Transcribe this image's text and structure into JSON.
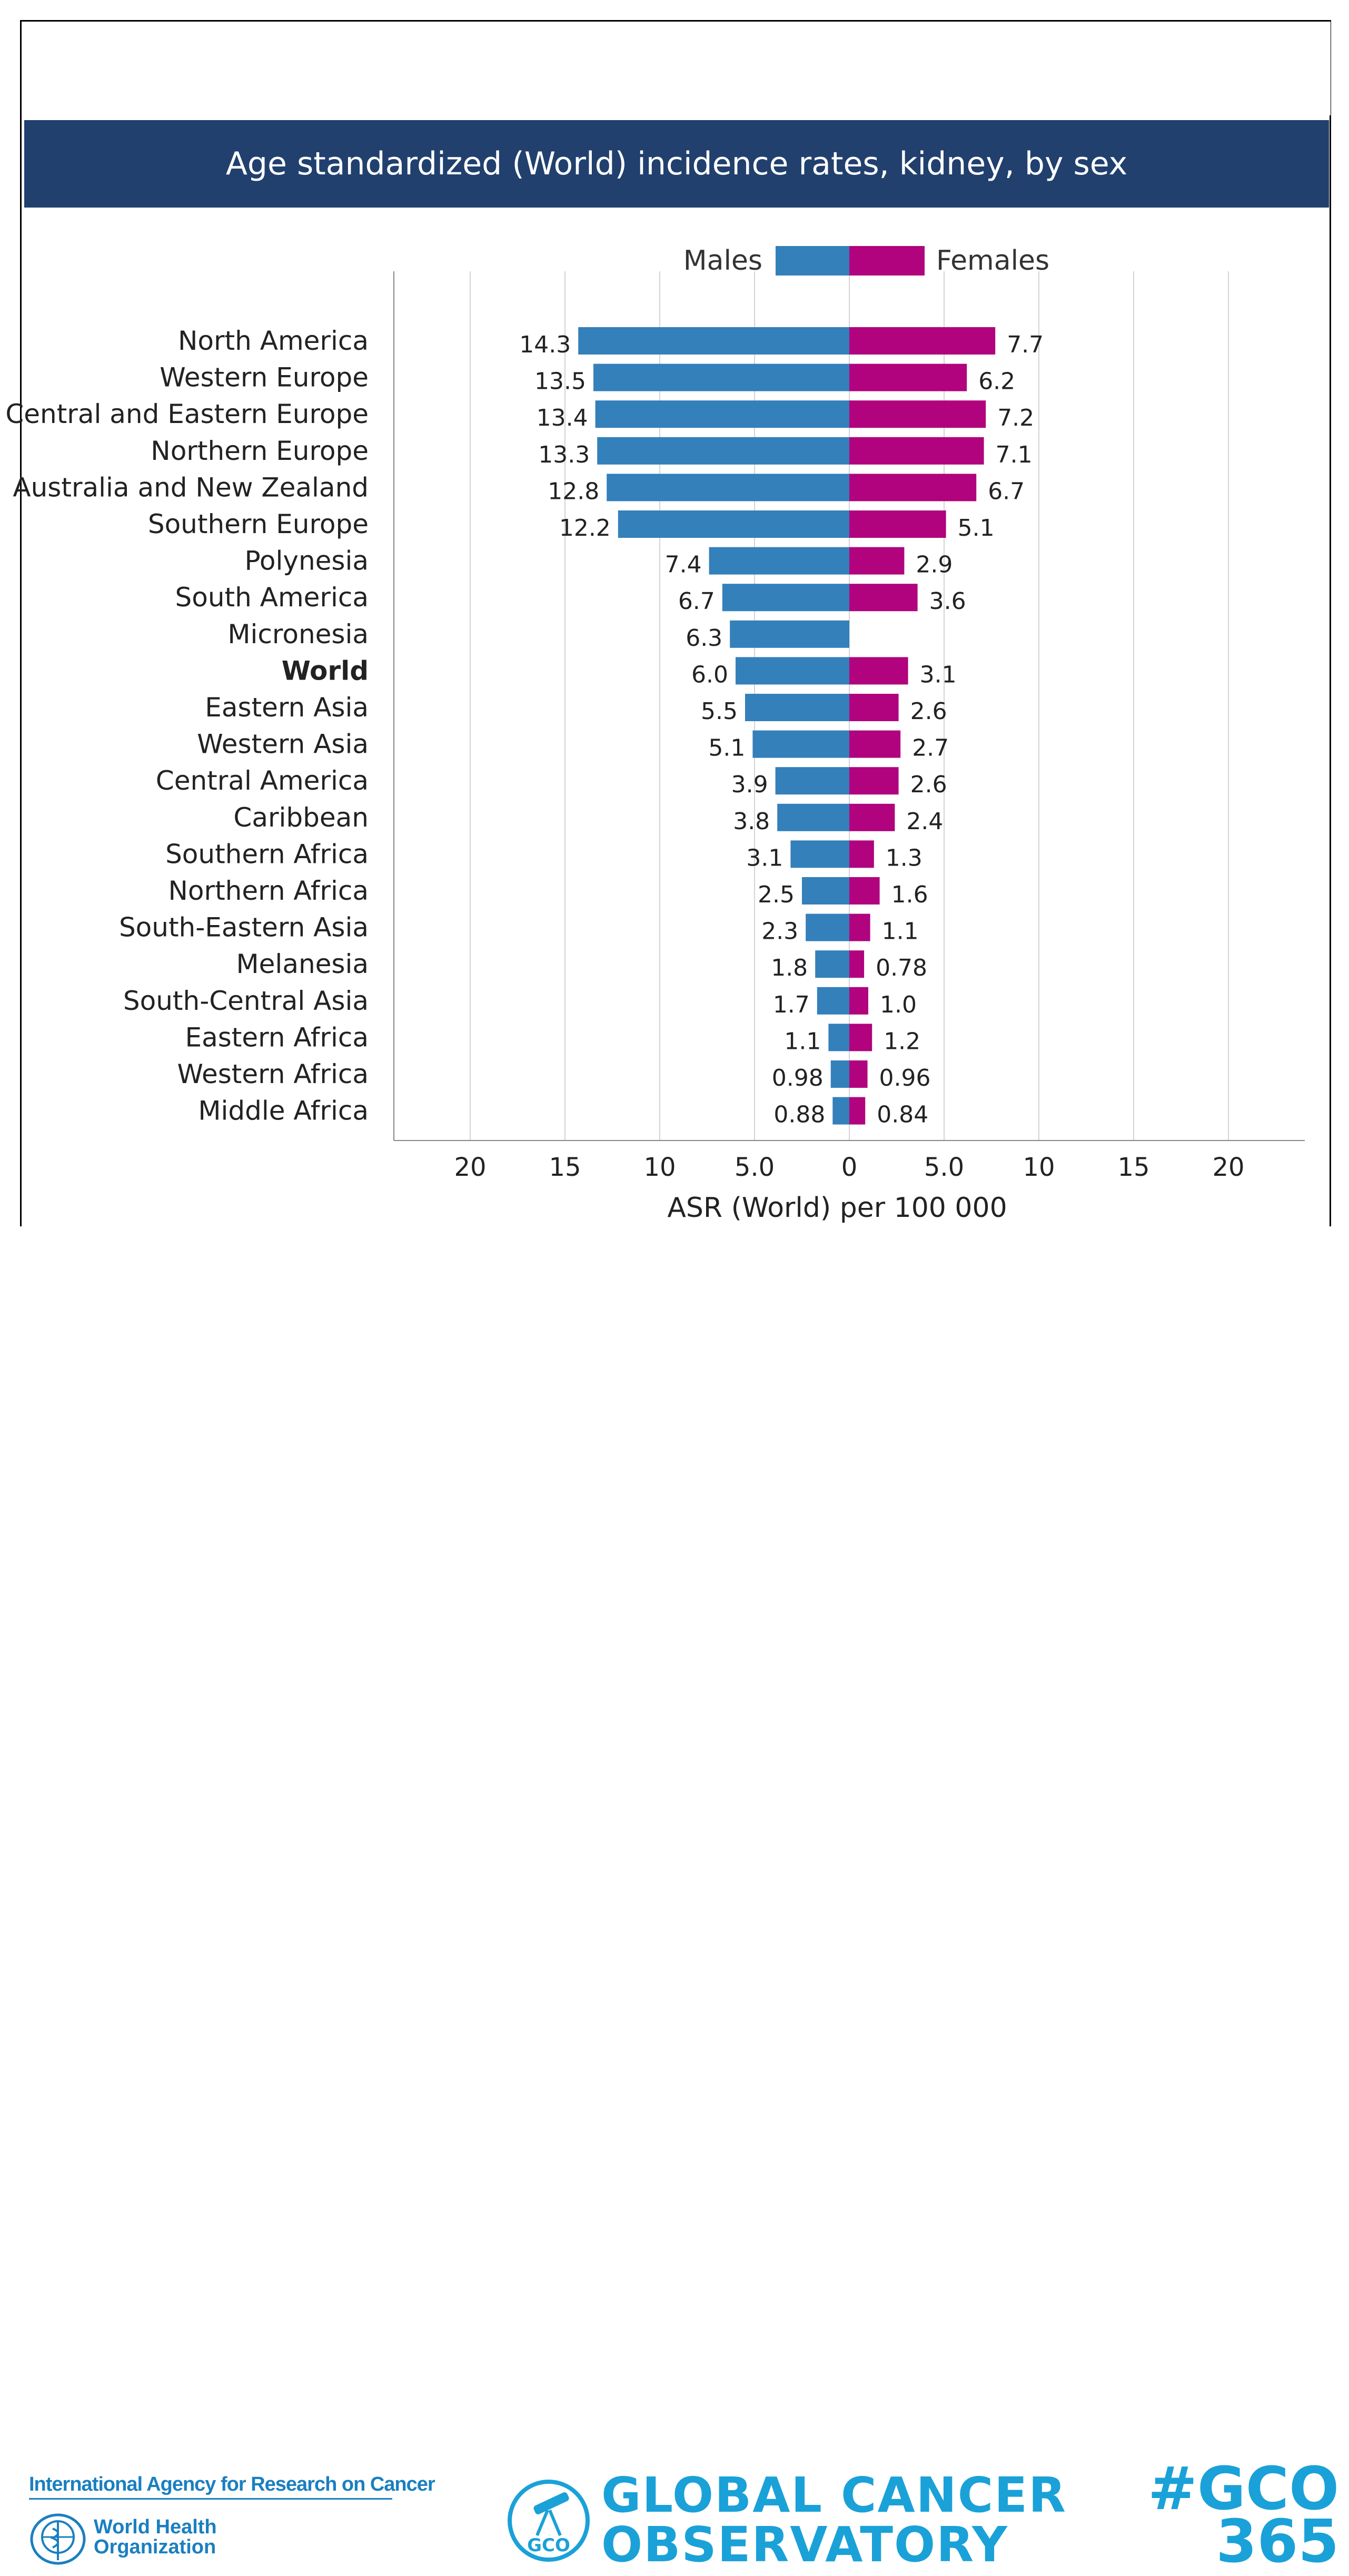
{
  "title": "Age standardized (World) incidence rates, kidney, by sex",
  "legend": {
    "males": "Males",
    "females": "Females"
  },
  "colors": {
    "males": "#3380bb",
    "females": "#b0037d",
    "title_bg": "#21406e",
    "brand": "#1aa1d8"
  },
  "footer": {
    "iarc": "International Agency for Research on Cancer",
    "who_line1": "World Health",
    "who_line2": "Organization",
    "gco_line1": "GLOBAL CANCER",
    "gco_line2": "OBSERVATORY",
    "gco_badge": "GCO",
    "hashtag_line1": "#GCO",
    "hashtag_line2": "365"
  },
  "chart_data": {
    "type": "bar",
    "orientation": "horizontal-butterfly",
    "title": "Age standardized (World) incidence rates, kidney, by sex",
    "xlabel": "ASR (World) per 100 000",
    "xlim": [
      -24,
      24
    ],
    "xticks": [
      -20,
      -15,
      -10,
      -5,
      0,
      5,
      10,
      15,
      20
    ],
    "xtick_labels": [
      "20",
      "15",
      "10",
      "5.0",
      "0",
      "5.0",
      "10",
      "15",
      "20"
    ],
    "grid": true,
    "legend_position": "top-center",
    "categories": [
      "North America",
      "Western Europe",
      "Central and Eastern Europe",
      "Northern Europe",
      "Australia and New Zealand",
      "Southern Europe",
      "Polynesia",
      "South America",
      "Micronesia",
      "World",
      "Eastern Asia",
      "Western Asia",
      "Central America",
      "Caribbean",
      "Southern Africa",
      "Northern Africa",
      "South-Eastern Asia",
      "Melanesia",
      "South-Central Asia",
      "Eastern Africa",
      "Western Africa",
      "Middle Africa"
    ],
    "highlight_category": "World",
    "series": [
      {
        "name": "Males",
        "values": [
          14.3,
          13.5,
          13.4,
          13.3,
          12.8,
          12.2,
          7.4,
          6.7,
          6.3,
          6.0,
          5.5,
          5.1,
          3.9,
          3.8,
          3.1,
          2.5,
          2.3,
          1.8,
          1.7,
          1.1,
          0.98,
          0.88
        ],
        "labels": [
          "14.3",
          "13.5",
          "13.4",
          "13.3",
          "12.8",
          "12.2",
          "7.4",
          "6.7",
          "6.3",
          "6.0",
          "5.5",
          "5.1",
          "3.9",
          "3.8",
          "3.1",
          "2.5",
          "2.3",
          "1.8",
          "1.7",
          "1.1",
          "0.98",
          "0.88"
        ]
      },
      {
        "name": "Females",
        "values": [
          7.7,
          6.2,
          7.2,
          7.1,
          6.7,
          5.1,
          2.9,
          3.6,
          null,
          3.1,
          2.6,
          2.7,
          2.6,
          2.4,
          1.3,
          1.6,
          1.1,
          0.78,
          1.0,
          1.2,
          0.96,
          0.84
        ],
        "labels": [
          "7.7",
          "6.2",
          "7.2",
          "7.1",
          "6.7",
          "5.1",
          "2.9",
          "3.6",
          "",
          "3.1",
          "2.6",
          "2.7",
          "2.6",
          "2.4",
          "1.3",
          "1.6",
          "1.1",
          "0.78",
          "1.0",
          "1.2",
          "0.96",
          "0.84"
        ]
      }
    ]
  }
}
